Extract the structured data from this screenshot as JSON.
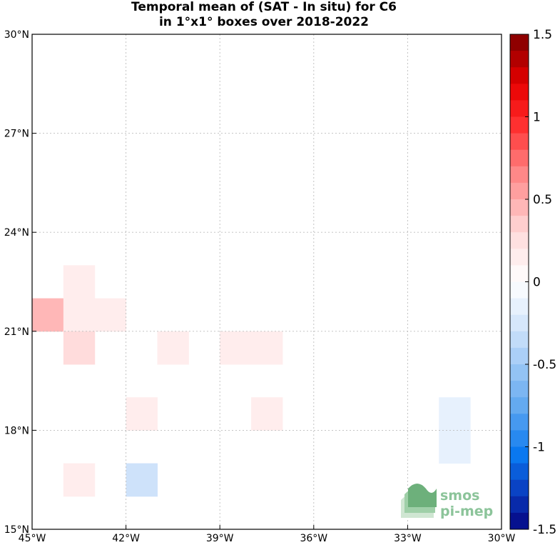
{
  "chart_data": {
    "type": "heatmap",
    "title_lines": [
      "Temporal mean of (SAT - In situ) for C6",
      "in 1°x1° boxes over 2018-2022"
    ],
    "x_range": [
      -45,
      -30
    ],
    "y_range": [
      15,
      30
    ],
    "x_ticks": [
      {
        "value": -45,
        "label": "45°W"
      },
      {
        "value": -42,
        "label": "42°W"
      },
      {
        "value": -39,
        "label": "39°W"
      },
      {
        "value": -36,
        "label": "36°W"
      },
      {
        "value": -33,
        "label": "33°W"
      },
      {
        "value": -30,
        "label": "30°W"
      }
    ],
    "y_ticks": [
      {
        "value": 15,
        "label": "15°N"
      },
      {
        "value": 18,
        "label": "18°N"
      },
      {
        "value": 21,
        "label": "21°N"
      },
      {
        "value": 24,
        "label": "24°N"
      },
      {
        "value": 27,
        "label": "27°N"
      },
      {
        "value": 30,
        "label": "30°N"
      }
    ],
    "grid": true,
    "colorbar": {
      "range": [
        -1.5,
        1.5
      ],
      "levels": 30,
      "ticks": [
        {
          "value": 1.5,
          "label": "1.5"
        },
        {
          "value": 1,
          "label": "1"
        },
        {
          "value": 0.5,
          "label": "0.5"
        },
        {
          "value": 0,
          "label": "0"
        },
        {
          "value": -0.5,
          "label": "-0.5"
        },
        {
          "value": -1,
          "label": "-1"
        },
        {
          "value": -1.5,
          "label": "-1.5"
        }
      ]
    },
    "cells": [
      {
        "lon": -45,
        "lat": 21,
        "value": 0.45
      },
      {
        "lon": -44,
        "lat": 22,
        "value": 0.15
      },
      {
        "lon": -44,
        "lat": 21,
        "value": 0.15
      },
      {
        "lon": -43,
        "lat": 21,
        "value": 0.15
      },
      {
        "lon": -44,
        "lat": 20,
        "value": 0.28
      },
      {
        "lon": -41,
        "lat": 20,
        "value": 0.15
      },
      {
        "lon": -39,
        "lat": 20,
        "value": 0.15
      },
      {
        "lon": -38,
        "lat": 20,
        "value": 0.15
      },
      {
        "lon": -42,
        "lat": 18,
        "value": 0.15
      },
      {
        "lon": -38,
        "lat": 18,
        "value": 0.15
      },
      {
        "lon": -32,
        "lat": 18,
        "value": -0.15
      },
      {
        "lon": -32,
        "lat": 17,
        "value": -0.15
      },
      {
        "lon": -44,
        "lat": 16,
        "value": 0.15
      },
      {
        "lon": -42,
        "lat": 16,
        "value": -0.3
      }
    ]
  },
  "logo": {
    "line1": "smos",
    "line2": "pi-mep"
  }
}
